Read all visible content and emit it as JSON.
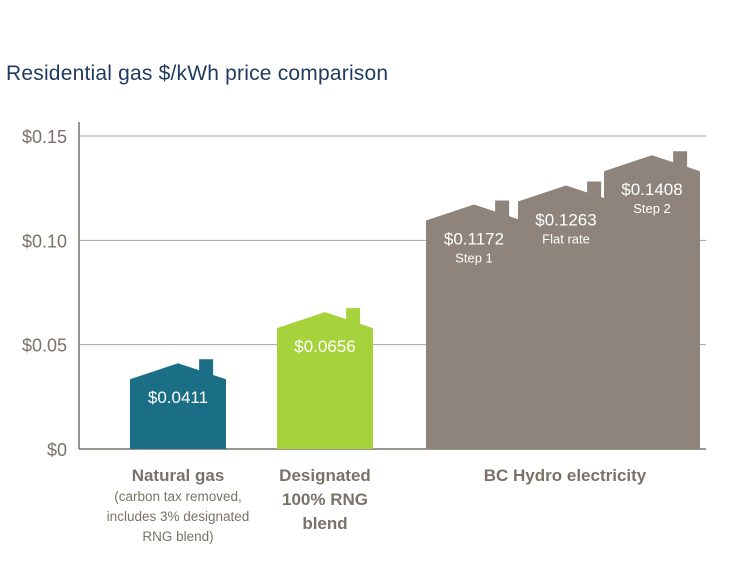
{
  "chart_data": {
    "type": "bar",
    "title": "Residential gas $/kWh price comparison",
    "ylim": [
      0,
      0.15
    ],
    "y_ticks": [
      {
        "value": 0,
        "label": "$0"
      },
      {
        "value": 0.05,
        "label": "$0.05"
      },
      {
        "value": 0.1,
        "label": "$0.10"
      },
      {
        "value": 0.15,
        "label": "$0.15"
      }
    ],
    "bars": [
      {
        "value": 0.0411,
        "label": "$0.0411",
        "sublabel": "",
        "color": "#1a6f87"
      },
      {
        "value": 0.0656,
        "label": "$0.0656",
        "sublabel": "",
        "color": "#a6d33c"
      },
      {
        "value": 0.1172,
        "label": "$0.1172",
        "sublabel": "Step 1",
        "color": "#8e847b"
      },
      {
        "value": 0.1263,
        "label": "$0.1263",
        "sublabel": "Flat rate",
        "color": "#8e847b"
      },
      {
        "value": 0.1408,
        "label": "$0.1408",
        "sublabel": "Step 2",
        "color": "#8e847b"
      }
    ],
    "categories": [
      {
        "name": "Natural gas",
        "note": [
          "(carbon tax removed,",
          "includes 3% designated",
          "RNG blend)"
        ]
      },
      {
        "name": [
          "Designated",
          "100% RNG",
          "blend"
        ],
        "note": []
      },
      {
        "name": "BC Hydro electricity",
        "note": []
      }
    ],
    "grid": true
  }
}
